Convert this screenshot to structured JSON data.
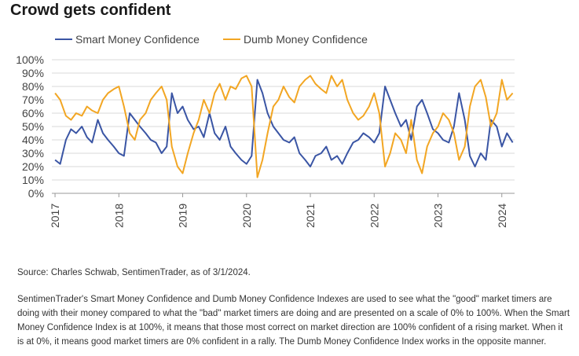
{
  "title": "Crowd gets confident",
  "source": "Source: Charles Schwab, SentimenTrader, as of 3/1/2024.",
  "description": "SentimenTrader's Smart Money Confidence and Dumb Money Confidence Indexes are used to see what the \"good\" market timers are doing with their money compared to what the \"bad\" market timers are doing and are presented on a scale of 0% to 100%. When the Smart Money Confidence Index is at 100%, it means that those most correct on market direction are 100% confident of a rising market. When it is at 0%, it means good market timers are 0% confident in a rally. The Dumb Money Confidence Index works in the opposite manner.",
  "chart_data": {
    "type": "line",
    "ylim": [
      0,
      100
    ],
    "y_tick_labels": [
      "0%",
      "10%",
      "20%",
      "30%",
      "40%",
      "50%",
      "60%",
      "70%",
      "80%",
      "90%",
      "100%"
    ],
    "x_tick_labels": [
      "2017",
      "2018",
      "2019",
      "2020",
      "2021",
      "2022",
      "2023",
      "2024"
    ],
    "x_tick_years": [
      2017,
      2018,
      2019,
      2020,
      2021,
      2022,
      2023,
      2024
    ],
    "xlim": [
      2016.95,
      2024.2
    ],
    "grid": true,
    "legend_position": "top-left",
    "series": [
      {
        "name": "Smart Money Confidence",
        "color": "#3a55a4",
        "x": [
          2017.0,
          2017.08,
          2017.17,
          2017.25,
          2017.33,
          2017.42,
          2017.5,
          2017.58,
          2017.67,
          2017.75,
          2017.83,
          2017.92,
          2018.0,
          2018.08,
          2018.17,
          2018.25,
          2018.33,
          2018.42,
          2018.5,
          2018.58,
          2018.67,
          2018.75,
          2018.83,
          2018.92,
          2019.0,
          2019.08,
          2019.17,
          2019.25,
          2019.33,
          2019.42,
          2019.5,
          2019.58,
          2019.67,
          2019.75,
          2019.83,
          2019.92,
          2020.0,
          2020.08,
          2020.17,
          2020.25,
          2020.33,
          2020.42,
          2020.5,
          2020.58,
          2020.67,
          2020.75,
          2020.83,
          2020.92,
          2021.0,
          2021.08,
          2021.17,
          2021.25,
          2021.33,
          2021.42,
          2021.5,
          2021.58,
          2021.67,
          2021.75,
          2021.83,
          2021.92,
          2022.0,
          2022.08,
          2022.17,
          2022.25,
          2022.33,
          2022.42,
          2022.5,
          2022.58,
          2022.67,
          2022.75,
          2022.83,
          2022.92,
          2023.0,
          2023.08,
          2023.17,
          2023.25,
          2023.33,
          2023.42,
          2023.5,
          2023.58,
          2023.67,
          2023.75,
          2023.83,
          2023.92,
          2024.0,
          2024.08,
          2024.17
        ],
        "y": [
          25,
          22,
          40,
          48,
          45,
          50,
          42,
          38,
          55,
          45,
          40,
          35,
          30,
          28,
          60,
          55,
          50,
          45,
          40,
          38,
          30,
          35,
          75,
          60,
          65,
          55,
          48,
          50,
          42,
          60,
          45,
          40,
          50,
          35,
          30,
          25,
          22,
          28,
          85,
          75,
          60,
          50,
          45,
          40,
          38,
          42,
          30,
          25,
          20,
          28,
          30,
          35,
          25,
          28,
          22,
          30,
          38,
          40,
          45,
          42,
          38,
          45,
          80,
          70,
          60,
          50,
          55,
          40,
          65,
          70,
          60,
          48,
          45,
          40,
          38,
          50,
          75,
          55,
          28,
          20,
          30,
          25,
          55,
          50,
          35,
          45,
          38
        ],
        "values_note": ""
      },
      {
        "name": "Dumb Money Confidence",
        "color": "#f2a623",
        "x": [
          2017.0,
          2017.08,
          2017.17,
          2017.25,
          2017.33,
          2017.42,
          2017.5,
          2017.58,
          2017.67,
          2017.75,
          2017.83,
          2017.92,
          2018.0,
          2018.08,
          2018.17,
          2018.25,
          2018.33,
          2018.42,
          2018.5,
          2018.58,
          2018.67,
          2018.75,
          2018.83,
          2018.92,
          2019.0,
          2019.08,
          2019.17,
          2019.25,
          2019.33,
          2019.42,
          2019.5,
          2019.58,
          2019.67,
          2019.75,
          2019.83,
          2019.92,
          2020.0,
          2020.08,
          2020.17,
          2020.25,
          2020.33,
          2020.42,
          2020.5,
          2020.58,
          2020.67,
          2020.75,
          2020.83,
          2020.92,
          2021.0,
          2021.08,
          2021.17,
          2021.25,
          2021.33,
          2021.42,
          2021.5,
          2021.58,
          2021.67,
          2021.75,
          2021.83,
          2021.92,
          2022.0,
          2022.08,
          2022.17,
          2022.25,
          2022.33,
          2022.42,
          2022.5,
          2022.58,
          2022.67,
          2022.75,
          2022.83,
          2022.92,
          2023.0,
          2023.08,
          2023.17,
          2023.25,
          2023.33,
          2023.42,
          2023.5,
          2023.58,
          2023.67,
          2023.75,
          2023.83,
          2023.92,
          2024.0,
          2024.08,
          2024.17
        ],
        "y": [
          75,
          70,
          58,
          55,
          60,
          58,
          65,
          62,
          60,
          70,
          75,
          78,
          80,
          65,
          45,
          40,
          55,
          60,
          70,
          75,
          80,
          70,
          35,
          20,
          15,
          30,
          45,
          55,
          70,
          60,
          75,
          82,
          70,
          80,
          78,
          86,
          88,
          80,
          12,
          25,
          45,
          65,
          70,
          80,
          72,
          68,
          80,
          85,
          88,
          82,
          78,
          75,
          88,
          80,
          85,
          70,
          60,
          55,
          58,
          65,
          75,
          60,
          20,
          30,
          45,
          40,
          30,
          55,
          25,
          15,
          35,
          45,
          50,
          60,
          55,
          45,
          25,
          35,
          65,
          80,
          85,
          72,
          50,
          60,
          85,
          70,
          75
        ]
      }
    ]
  }
}
